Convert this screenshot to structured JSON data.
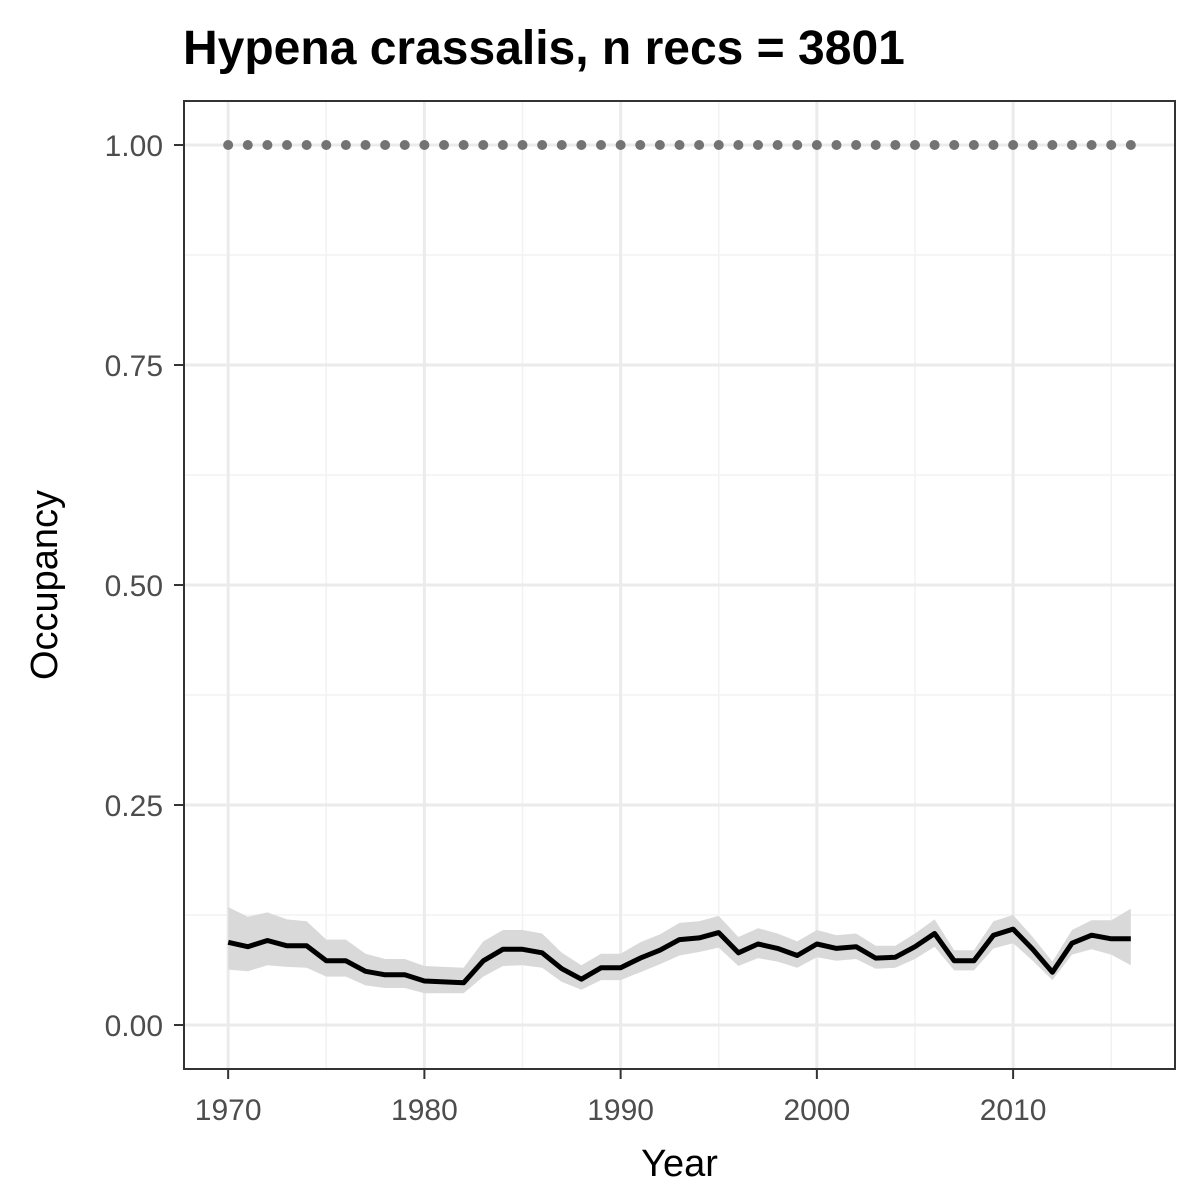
{
  "chart_data": {
    "type": "line",
    "title": "Hypena crassalis, n recs = 3801",
    "xlabel": "Year",
    "ylabel": "Occupancy",
    "xlim": [
      1967.75,
      2018.25
    ],
    "ylim": [
      -0.05,
      1.05
    ],
    "x_ticks": [
      1970,
      1980,
      1990,
      2000,
      2010
    ],
    "x_tick_labels": [
      "1970",
      "1980",
      "1990",
      "2000",
      "2010"
    ],
    "y_ticks": [
      0,
      0.25,
      0.5,
      0.75,
      1.0
    ],
    "y_tick_labels": [
      "0.00",
      "0.25",
      "0.50",
      "0.75",
      "1.00"
    ],
    "grid": true,
    "x": [
      1970,
      1971,
      1972,
      1973,
      1974,
      1975,
      1976,
      1977,
      1978,
      1979,
      1980,
      1981,
      1982,
      1983,
      1984,
      1985,
      1986,
      1987,
      1988,
      1989,
      1990,
      1991,
      1992,
      1993,
      1994,
      1995,
      1996,
      1997,
      1998,
      1999,
      2000,
      2001,
      2002,
      2003,
      2004,
      2005,
      2006,
      2007,
      2008,
      2009,
      2010,
      2011,
      2012,
      2013,
      2014,
      2015,
      2016
    ],
    "series": [
      {
        "kind": "mean",
        "values": [
          0.094,
          0.089,
          0.096,
          0.09,
          0.09,
          0.073,
          0.073,
          0.061,
          0.057,
          0.057,
          0.05,
          0.049,
          0.048,
          0.073,
          0.086,
          0.086,
          0.082,
          0.064,
          0.052,
          0.065,
          0.065,
          0.076,
          0.085,
          0.097,
          0.099,
          0.105,
          0.082,
          0.092,
          0.087,
          0.079,
          0.092,
          0.087,
          0.089,
          0.076,
          0.077,
          0.089,
          0.104,
          0.073,
          0.073,
          0.102,
          0.109,
          0.086,
          0.06,
          0.093,
          0.102,
          0.098,
          0.098
        ],
        "lower": [
          0.063,
          0.061,
          0.068,
          0.066,
          0.065,
          0.055,
          0.055,
          0.045,
          0.042,
          0.042,
          0.036,
          0.036,
          0.036,
          0.055,
          0.067,
          0.068,
          0.065,
          0.049,
          0.04,
          0.051,
          0.051,
          0.06,
          0.069,
          0.079,
          0.083,
          0.088,
          0.067,
          0.076,
          0.072,
          0.065,
          0.077,
          0.073,
          0.075,
          0.064,
          0.065,
          0.075,
          0.089,
          0.062,
          0.062,
          0.087,
          0.093,
          0.073,
          0.051,
          0.08,
          0.086,
          0.08,
          0.068
        ],
        "upper": [
          0.134,
          0.123,
          0.128,
          0.12,
          0.118,
          0.097,
          0.097,
          0.081,
          0.075,
          0.075,
          0.067,
          0.066,
          0.065,
          0.095,
          0.108,
          0.108,
          0.104,
          0.082,
          0.068,
          0.081,
          0.081,
          0.094,
          0.103,
          0.116,
          0.118,
          0.124,
          0.1,
          0.11,
          0.104,
          0.095,
          0.108,
          0.102,
          0.104,
          0.09,
          0.09,
          0.104,
          0.12,
          0.085,
          0.085,
          0.118,
          0.125,
          0.1,
          0.072,
          0.108,
          0.119,
          0.119,
          0.132
        ]
      },
      {
        "kind": "reference",
        "values": [
          1,
          1,
          1,
          1,
          1,
          1,
          1,
          1,
          1,
          1,
          1,
          1,
          1,
          1,
          1,
          1,
          1,
          1,
          1,
          1,
          1,
          1,
          1,
          1,
          1,
          1,
          1,
          1,
          1,
          1,
          1,
          1,
          1,
          1,
          1,
          1,
          1,
          1,
          1,
          1,
          1,
          1,
          1,
          1,
          1,
          1,
          1
        ]
      }
    ],
    "colors": {
      "line": "#000000",
      "ribbon": "#d9d9d9",
      "reference_points": "#737373",
      "grid_major": "#ebebeb",
      "grid_minor": "#f2f2f2",
      "panel_border": "#333333",
      "tick_labels": "#4d4d4d"
    }
  }
}
